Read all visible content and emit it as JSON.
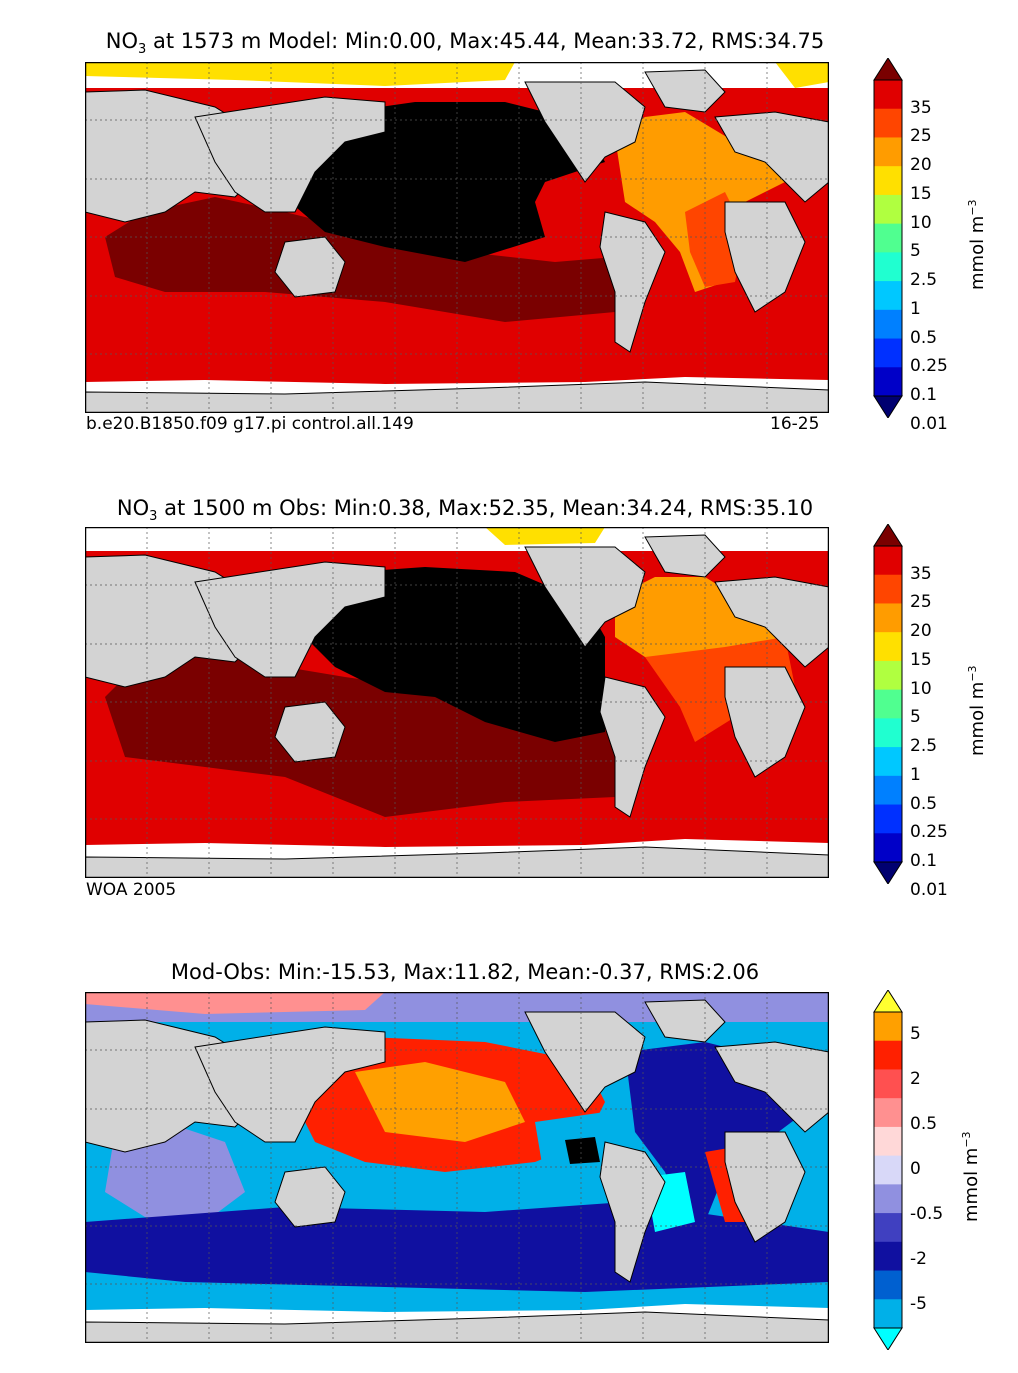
{
  "panels": [
    {
      "id": "model",
      "title_prefix": "NO",
      "title_sub": "3",
      "title_rest": " at 1573 m Model: Min:0.00, Max:45.44, Mean:33.72, RMS:34.75",
      "footer_left": "b.e20.B1850.f09 g17.pi control.all.149",
      "footer_right": "16-25",
      "colorbar_labels": [
        "35",
        "25",
        "20",
        "15",
        "10",
        "5",
        "2.5",
        "1",
        "0.5",
        "0.25",
        "0.1",
        "0.01"
      ],
      "colorbar_colors": [
        "#7a0000",
        "#e00000",
        "#ff4500",
        "#ff9c00",
        "#ffe000",
        "#b0ff40",
        "#50ff90",
        "#20ffd0",
        "#00c8ff",
        "#0080ff",
        "#0030ff",
        "#0000c8",
        "#000070"
      ],
      "unit_main": "mmol m",
      "unit_sup": "−3"
    },
    {
      "id": "obs",
      "title_prefix": "NO",
      "title_sub": "3",
      "title_rest": " at 1500 m Obs: Min:0.38, Max:52.35, Mean:34.24, RMS:35.10",
      "footer_left": "WOA 2005",
      "footer_right": "",
      "colorbar_labels": [
        "35",
        "25",
        "20",
        "15",
        "10",
        "5",
        "2.5",
        "1",
        "0.5",
        "0.25",
        "0.1",
        "0.01"
      ],
      "colorbar_colors": [
        "#7a0000",
        "#e00000",
        "#ff4500",
        "#ff9c00",
        "#ffe000",
        "#b0ff40",
        "#50ff90",
        "#20ffd0",
        "#00c8ff",
        "#0080ff",
        "#0030ff",
        "#0000c8",
        "#000070"
      ],
      "unit_main": "mmol m",
      "unit_sup": "−3"
    },
    {
      "id": "diff",
      "title_prefix": "",
      "title_sub": "",
      "title_rest": "Mod-Obs: Min:-15.53, Max:11.82, Mean:-0.37, RMS:2.06",
      "footer_left": "",
      "footer_right": "",
      "colorbar_labels": [
        "5",
        "2",
        "0.5",
        "0",
        "-0.5",
        "-2",
        "-5"
      ],
      "colorbar_colors": [
        "#ffff30",
        "#ffa000",
        "#ff2000",
        "#ff5050",
        "#ff9090",
        "#ffd8d8",
        "#d8d8f8",
        "#9090e0",
        "#4040c0",
        "#1010a0",
        "#0060d0",
        "#00b0e8",
        "#00ffff"
      ],
      "unit_main": "mmol m",
      "unit_sup": "−3"
    }
  ]
}
